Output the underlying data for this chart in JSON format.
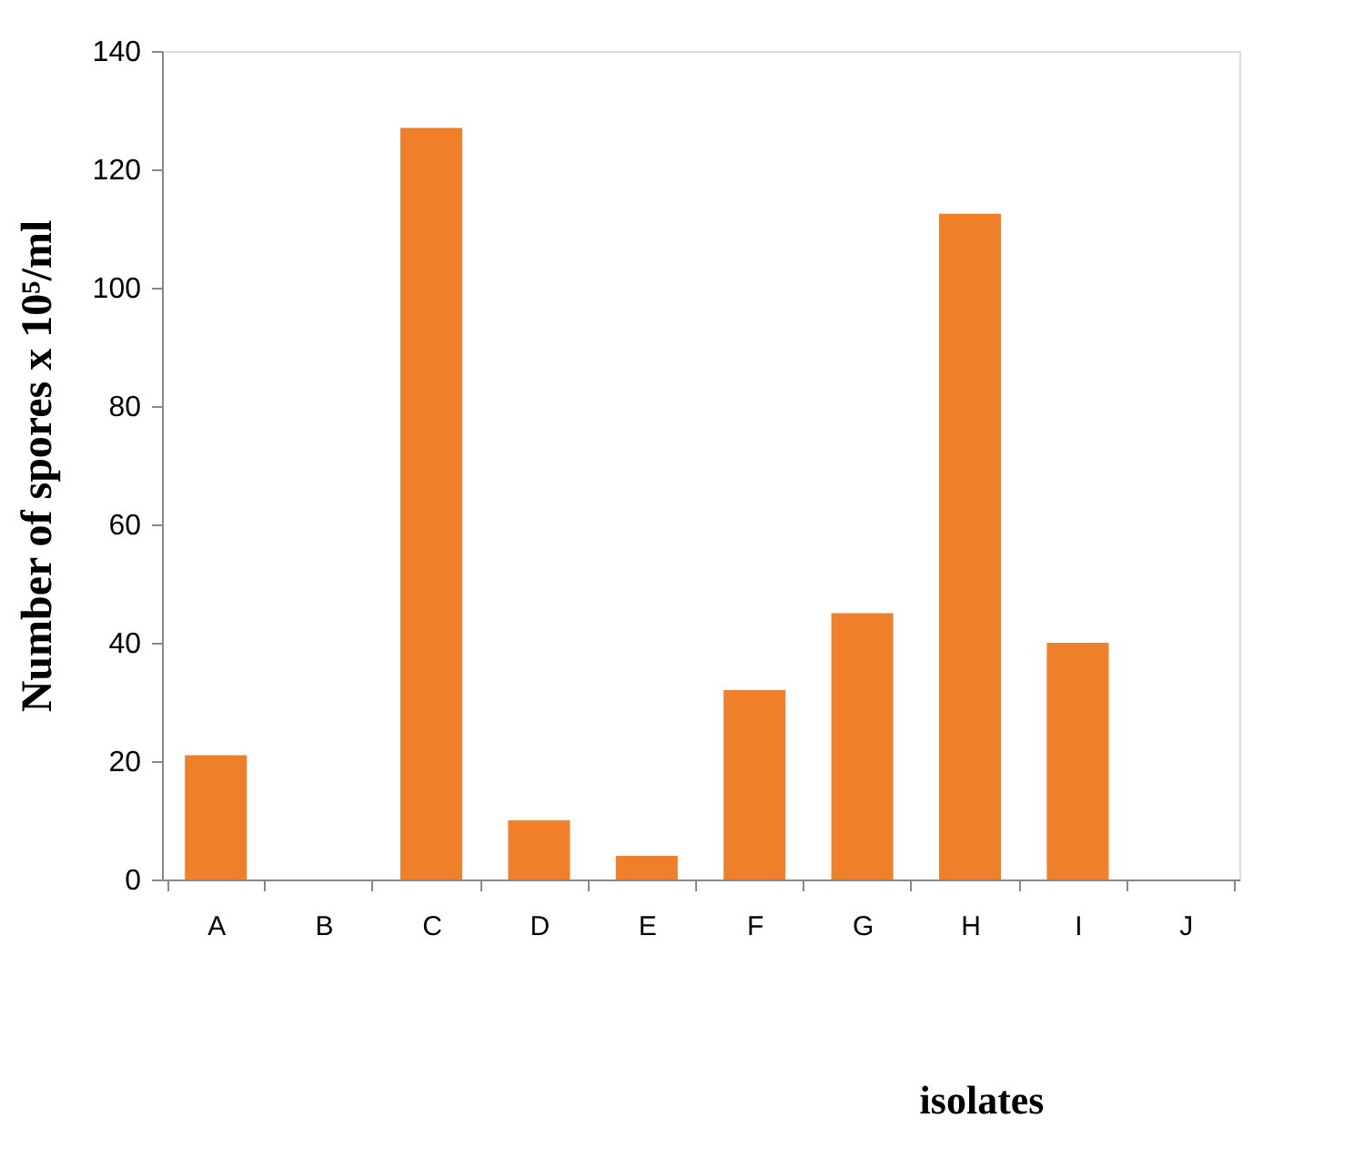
{
  "chart_data": {
    "type": "bar",
    "ylabel": "Number of spores x 10⁵/ml",
    "xlabel": "isolates",
    "categories": [
      "A",
      "B",
      "C",
      "D",
      "E",
      "F",
      "G",
      "H",
      "I",
      "J"
    ],
    "values": [
      21,
      0,
      127,
      10,
      4,
      32,
      45,
      112.5,
      40,
      0
    ],
    "color": "#f07f2a",
    "ylim": [
      0,
      140
    ],
    "yticks": [
      0,
      20,
      40,
      60,
      80,
      100,
      120,
      140
    ],
    "grid": false
  }
}
